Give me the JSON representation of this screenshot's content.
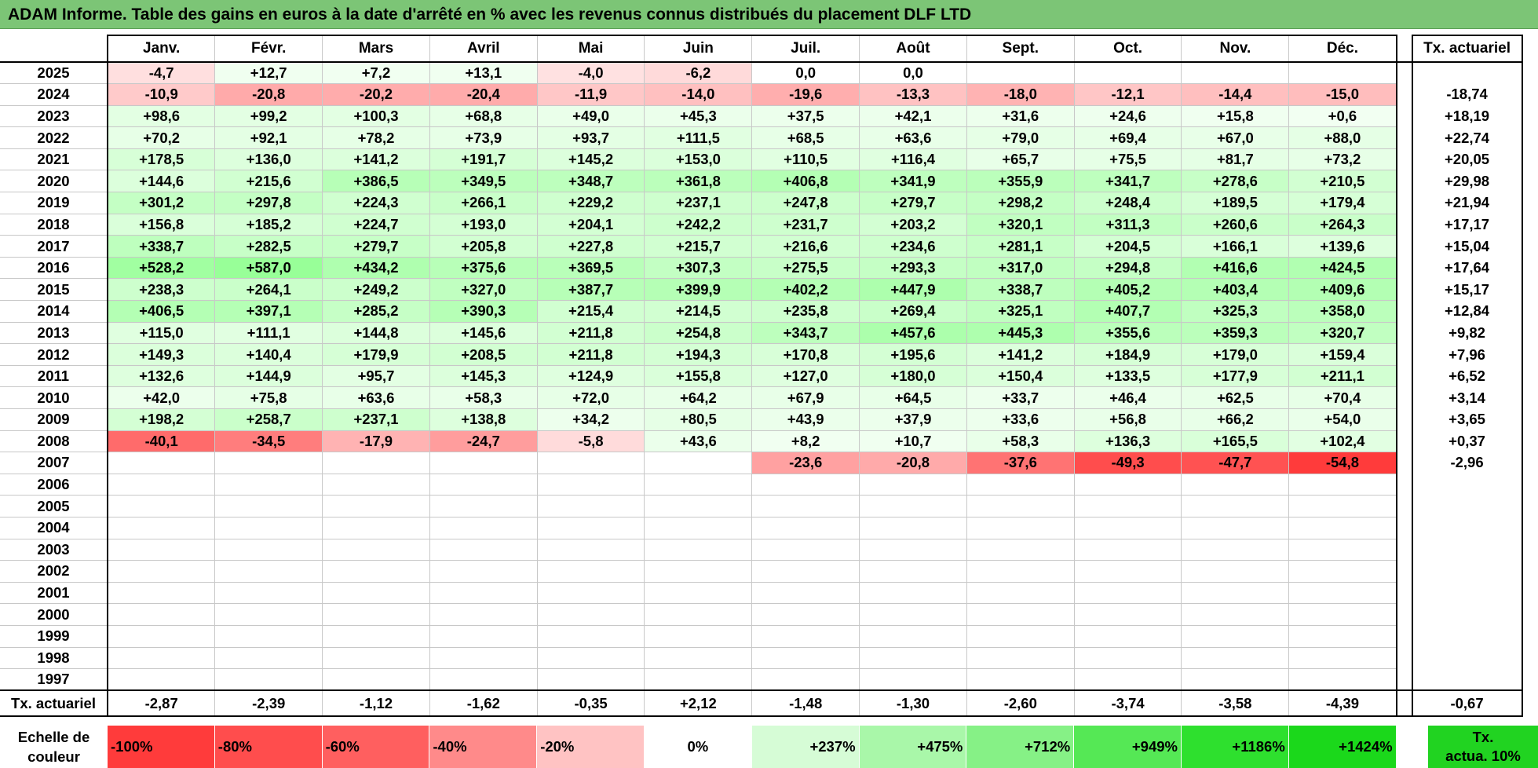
{
  "title": "ADAM Informe. Table des gains en euros à la date d'arrêté en % avec les revenus connus distribués du placement DLF LTD",
  "months": [
    "Janv.",
    "Févr.",
    "Mars",
    "Avril",
    "Mai",
    "Juin",
    "Juil.",
    "Août",
    "Sept.",
    "Oct.",
    "Nov.",
    "Déc."
  ],
  "yearly_header": "Tx. actuariel",
  "rows": [
    {
      "year": "2025",
      "values": [
        "-4,7",
        "+12,7",
        "+7,2",
        "+13,1",
        "-4,0",
        "-6,2",
        "0,0",
        "0,0",
        "",
        "",
        "",
        ""
      ],
      "rate": ""
    },
    {
      "year": "2024",
      "values": [
        "-10,9",
        "-20,8",
        "-20,2",
        "-20,4",
        "-11,9",
        "-14,0",
        "-19,6",
        "-13,3",
        "-18,0",
        "-12,1",
        "-14,4",
        "-15,0"
      ],
      "rate": "-18,74"
    },
    {
      "year": "2023",
      "values": [
        "+98,6",
        "+99,2",
        "+100,3",
        "+68,8",
        "+49,0",
        "+45,3",
        "+37,5",
        "+42,1",
        "+31,6",
        "+24,6",
        "+15,8",
        "+0,6"
      ],
      "rate": "+18,19"
    },
    {
      "year": "2022",
      "values": [
        "+70,2",
        "+92,1",
        "+78,2",
        "+73,9",
        "+93,7",
        "+111,5",
        "+68,5",
        "+63,6",
        "+79,0",
        "+69,4",
        "+67,0",
        "+88,0"
      ],
      "rate": "+22,74"
    },
    {
      "year": "2021",
      "values": [
        "+178,5",
        "+136,0",
        "+141,2",
        "+191,7",
        "+145,2",
        "+153,0",
        "+110,5",
        "+116,4",
        "+65,7",
        "+75,5",
        "+81,7",
        "+73,2"
      ],
      "rate": "+20,05"
    },
    {
      "year": "2020",
      "values": [
        "+144,6",
        "+215,6",
        "+386,5",
        "+349,5",
        "+348,7",
        "+361,8",
        "+406,8",
        "+341,9",
        "+355,9",
        "+341,7",
        "+278,6",
        "+210,5"
      ],
      "rate": "+29,98"
    },
    {
      "year": "2019",
      "values": [
        "+301,2",
        "+297,8",
        "+224,3",
        "+266,1",
        "+229,2",
        "+237,1",
        "+247,8",
        "+279,7",
        "+298,2",
        "+248,4",
        "+189,5",
        "+179,4"
      ],
      "rate": "+21,94"
    },
    {
      "year": "2018",
      "values": [
        "+156,8",
        "+185,2",
        "+224,7",
        "+193,0",
        "+204,1",
        "+242,2",
        "+231,7",
        "+203,2",
        "+320,1",
        "+311,3",
        "+260,6",
        "+264,3"
      ],
      "rate": "+17,17"
    },
    {
      "year": "2017",
      "values": [
        "+338,7",
        "+282,5",
        "+279,7",
        "+205,8",
        "+227,8",
        "+215,7",
        "+216,6",
        "+234,6",
        "+281,1",
        "+204,5",
        "+166,1",
        "+139,6"
      ],
      "rate": "+15,04"
    },
    {
      "year": "2016",
      "values": [
        "+528,2",
        "+587,0",
        "+434,2",
        "+375,6",
        "+369,5",
        "+307,3",
        "+275,5",
        "+293,3",
        "+317,0",
        "+294,8",
        "+416,6",
        "+424,5"
      ],
      "rate": "+17,64"
    },
    {
      "year": "2015",
      "values": [
        "+238,3",
        "+264,1",
        "+249,2",
        "+327,0",
        "+387,7",
        "+399,9",
        "+402,2",
        "+447,9",
        "+338,7",
        "+405,2",
        "+403,4",
        "+409,6"
      ],
      "rate": "+15,17"
    },
    {
      "year": "2014",
      "values": [
        "+406,5",
        "+397,1",
        "+285,2",
        "+390,3",
        "+215,4",
        "+214,5",
        "+235,8",
        "+269,4",
        "+325,1",
        "+407,7",
        "+325,3",
        "+358,0"
      ],
      "rate": "+12,84"
    },
    {
      "year": "2013",
      "values": [
        "+115,0",
        "+111,1",
        "+144,8",
        "+145,6",
        "+211,8",
        "+254,8",
        "+343,7",
        "+457,6",
        "+445,3",
        "+355,6",
        "+359,3",
        "+320,7"
      ],
      "rate": "+9,82"
    },
    {
      "year": "2012",
      "values": [
        "+149,3",
        "+140,4",
        "+179,9",
        "+208,5",
        "+211,8",
        "+194,3",
        "+170,8",
        "+195,6",
        "+141,2",
        "+184,9",
        "+179,0",
        "+159,4"
      ],
      "rate": "+7,96"
    },
    {
      "year": "2011",
      "values": [
        "+132,6",
        "+144,9",
        "+95,7",
        "+145,3",
        "+124,9",
        "+155,8",
        "+127,0",
        "+180,0",
        "+150,4",
        "+133,5",
        "+177,9",
        "+211,1"
      ],
      "rate": "+6,52"
    },
    {
      "year": "2010",
      "values": [
        "+42,0",
        "+75,8",
        "+63,6",
        "+58,3",
        "+72,0",
        "+64,2",
        "+67,9",
        "+64,5",
        "+33,7",
        "+46,4",
        "+62,5",
        "+70,4"
      ],
      "rate": "+3,14"
    },
    {
      "year": "2009",
      "values": [
        "+198,2",
        "+258,7",
        "+237,1",
        "+138,8",
        "+34,2",
        "+80,5",
        "+43,9",
        "+37,9",
        "+33,6",
        "+56,8",
        "+66,2",
        "+54,0"
      ],
      "rate": "+3,65"
    },
    {
      "year": "2008",
      "values": [
        "-40,1",
        "-34,5",
        "-17,9",
        "-24,7",
        "-5,8",
        "+43,6",
        "+8,2",
        "+10,7",
        "+58,3",
        "+136,3",
        "+165,5",
        "+102,4"
      ],
      "rate": "+0,37"
    },
    {
      "year": "2007",
      "values": [
        "",
        "",
        "",
        "",
        "",
        "",
        "-23,6",
        "-20,8",
        "-37,6",
        "-49,3",
        "-47,7",
        "-54,8"
      ],
      "rate": "-2,96"
    },
    {
      "year": "2006",
      "values": [
        "",
        "",
        "",
        "",
        "",
        "",
        "",
        "",
        "",
        "",
        "",
        ""
      ],
      "rate": ""
    },
    {
      "year": "2005",
      "values": [
        "",
        "",
        "",
        "",
        "",
        "",
        "",
        "",
        "",
        "",
        "",
        ""
      ],
      "rate": ""
    },
    {
      "year": "2004",
      "values": [
        "",
        "",
        "",
        "",
        "",
        "",
        "",
        "",
        "",
        "",
        "",
        ""
      ],
      "rate": ""
    },
    {
      "year": "2003",
      "values": [
        "",
        "",
        "",
        "",
        "",
        "",
        "",
        "",
        "",
        "",
        "",
        ""
      ],
      "rate": ""
    },
    {
      "year": "2002",
      "values": [
        "",
        "",
        "",
        "",
        "",
        "",
        "",
        "",
        "",
        "",
        "",
        ""
      ],
      "rate": ""
    },
    {
      "year": "2001",
      "values": [
        "",
        "",
        "",
        "",
        "",
        "",
        "",
        "",
        "",
        "",
        "",
        ""
      ],
      "rate": ""
    },
    {
      "year": "2000",
      "values": [
        "",
        "",
        "",
        "",
        "",
        "",
        "",
        "",
        "",
        "",
        "",
        ""
      ],
      "rate": ""
    },
    {
      "year": "1999",
      "values": [
        "",
        "",
        "",
        "",
        "",
        "",
        "",
        "",
        "",
        "",
        "",
        ""
      ],
      "rate": ""
    },
    {
      "year": "1998",
      "values": [
        "",
        "",
        "",
        "",
        "",
        "",
        "",
        "",
        "",
        "",
        "",
        ""
      ],
      "rate": ""
    },
    {
      "year": "1997",
      "values": [
        "",
        "",
        "",
        "",
        "",
        "",
        "",
        "",
        "",
        "",
        "",
        ""
      ],
      "rate": ""
    }
  ],
  "monthly_rates_label": "Tx. actuariel",
  "monthly_rates": [
    "-2,87",
    "-2,39",
    "-1,12",
    "-1,62",
    "-0,35",
    "+2,12",
    "-1,48",
    "-1,30",
    "-2,60",
    "-3,74",
    "-3,58",
    "-4,39"
  ],
  "overall_rate": "-0,67",
  "scale": {
    "label_line1": "Echelle de",
    "label_line2": "couleur",
    "steps": [
      {
        "label": "-100%",
        "color": "#ff3b3b"
      },
      {
        "label": "-80%",
        "color": "#ff4d4d"
      },
      {
        "label": "-60%",
        "color": "#ff5f5f"
      },
      {
        "label": "-40%",
        "color": "#ff8a8a"
      },
      {
        "label": "-20%",
        "color": "#ffc3c3"
      },
      {
        "label": "0%",
        "color": "#ffffff"
      },
      {
        "label": "+237%",
        "color": "#d6fcd6"
      },
      {
        "label": "+475%",
        "color": "#a9f7a9"
      },
      {
        "label": "+712%",
        "color": "#86f186"
      },
      {
        "label": "+949%",
        "color": "#55e855"
      },
      {
        "label": "+1186%",
        "color": "#2ee02e"
      },
      {
        "label": "+1424%",
        "color": "#1bd81b"
      }
    ],
    "tx_line1": "Tx.",
    "tx_line2": "actua. 10%",
    "tx_color": "#21d321"
  }
}
